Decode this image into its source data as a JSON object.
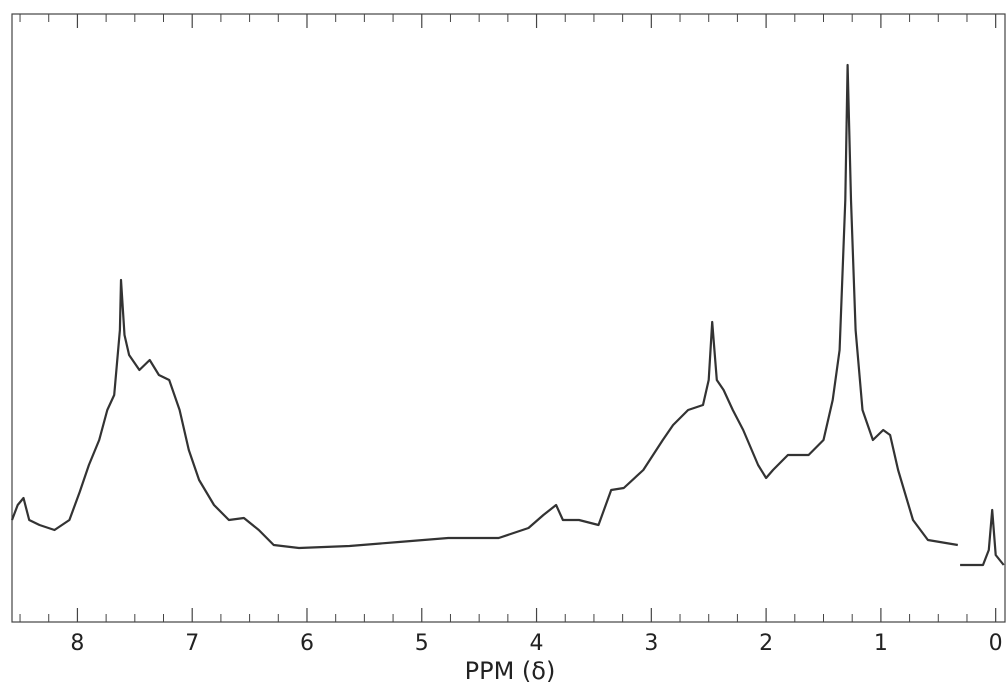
{
  "chart_data": {
    "type": "line",
    "xlabel": "PPM (δ)",
    "x": [
      8.57,
      8.52,
      8.47,
      8.42,
      8.33,
      8.2,
      8.07,
      7.98,
      7.9,
      7.81,
      7.74,
      7.68,
      7.63,
      7.62,
      7.59,
      7.55,
      7.46,
      7.37,
      7.29,
      7.2,
      7.11,
      7.03,
      6.94,
      6.81,
      6.68,
      6.55,
      6.42,
      6.29,
      6.07,
      5.63,
      5.2,
      4.77,
      4.33,
      4.07,
      3.94,
      3.83,
      3.77,
      3.63,
      3.46,
      3.35,
      3.24,
      3.07,
      2.9,
      2.81,
      2.68,
      2.55,
      2.5,
      2.47,
      2.43,
      2.37,
      2.29,
      2.2,
      2.07,
      2.0,
      1.94,
      1.81,
      1.63,
      1.5,
      1.42,
      1.36,
      1.31,
      1.29,
      1.26,
      1.22,
      1.16,
      1.07,
      0.98,
      0.92,
      0.85,
      0.72,
      0.59,
      0.33,
      0.32,
      0.31,
      0.11,
      0.06,
      0.03,
      0.0,
      -0.07
    ],
    "values": [
      102,
      117,
      124,
      102,
      97,
      92,
      102,
      130,
      157,
      182,
      212,
      227,
      292,
      342,
      287,
      267,
      252,
      262,
      247,
      242,
      212,
      172,
      142,
      117,
      102,
      104,
      92,
      77,
      74,
      76,
      80,
      84,
      84,
      94,
      107,
      117,
      102,
      102,
      97,
      132,
      134,
      152,
      182,
      197,
      212,
      217,
      242,
      300,
      242,
      232,
      212,
      192,
      157,
      144,
      152,
      167,
      167,
      182,
      222,
      272,
      422,
      557,
      422,
      292,
      212,
      182,
      192,
      187,
      152,
      102,
      82,
      77,
      null,
      57,
      57,
      72,
      112,
      67,
      57
    ],
    "color": "#333333",
    "xlim": [
      8.57,
      -0.09
    ],
    "ylim": [
      0,
      608
    ],
    "xticks": [
      8,
      7,
      6,
      5,
      4,
      3,
      2,
      1,
      0
    ],
    "xminorticks": [
      8.5,
      8.25,
      7.75,
      7.5,
      7.25,
      6.75,
      6.5,
      6.25,
      5.75,
      5.5,
      5.25,
      4.75,
      4.5,
      4.25,
      3.75,
      3.5,
      3.25,
      2.75,
      2.5,
      2.25,
      1.75,
      1.5,
      1.25,
      0.75,
      0.5,
      0.25
    ]
  }
}
